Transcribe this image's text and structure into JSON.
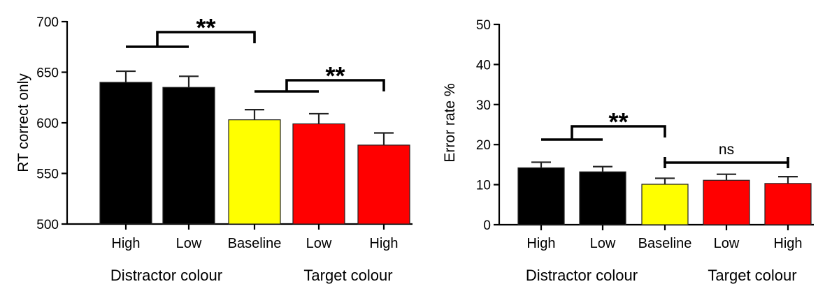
{
  "colors": {
    "distractor": "#000000",
    "baseline": "#ffff00",
    "target": "#ff0000"
  },
  "chart_data": [
    {
      "type": "bar",
      "ylabel": "RT correct only",
      "ylim": [
        500,
        700
      ],
      "yticks": [
        500,
        550,
        600,
        650,
        700
      ],
      "categories": [
        "High",
        "Low",
        "Baseline",
        "Low",
        "High"
      ],
      "values": [
        640,
        635,
        603,
        599,
        578
      ],
      "errors": [
        11,
        11,
        10,
        10,
        12
      ],
      "bar_colors": [
        "#000000",
        "#000000",
        "#ffff00",
        "#ff0000",
        "#ff0000"
      ],
      "group_labels": [
        "Distractor colour",
        "Target colour"
      ],
      "significance": [
        {
          "text": "**",
          "from": [
            0,
            1
          ],
          "to": 2
        },
        {
          "text": "**",
          "from": [
            2,
            3
          ],
          "to": 4
        }
      ]
    },
    {
      "type": "bar",
      "ylabel": "Error rate %",
      "ylim": [
        0,
        50
      ],
      "yticks": [
        0,
        10,
        20,
        30,
        40,
        50
      ],
      "categories": [
        "High",
        "Low",
        "Baseline",
        "Low",
        "High"
      ],
      "values": [
        14.2,
        13.2,
        10.1,
        11.1,
        10.3
      ],
      "errors": [
        1.4,
        1.3,
        1.5,
        1.5,
        1.7
      ],
      "bar_colors": [
        "#000000",
        "#000000",
        "#ffff00",
        "#ff0000",
        "#ff0000"
      ],
      "group_labels": [
        "Distractor colour",
        "Target colour"
      ],
      "significance": [
        {
          "text": "**",
          "from": [
            0,
            1
          ],
          "to": 2
        },
        {
          "text": "ns",
          "from": [
            2
          ],
          "to": 4
        }
      ]
    }
  ]
}
